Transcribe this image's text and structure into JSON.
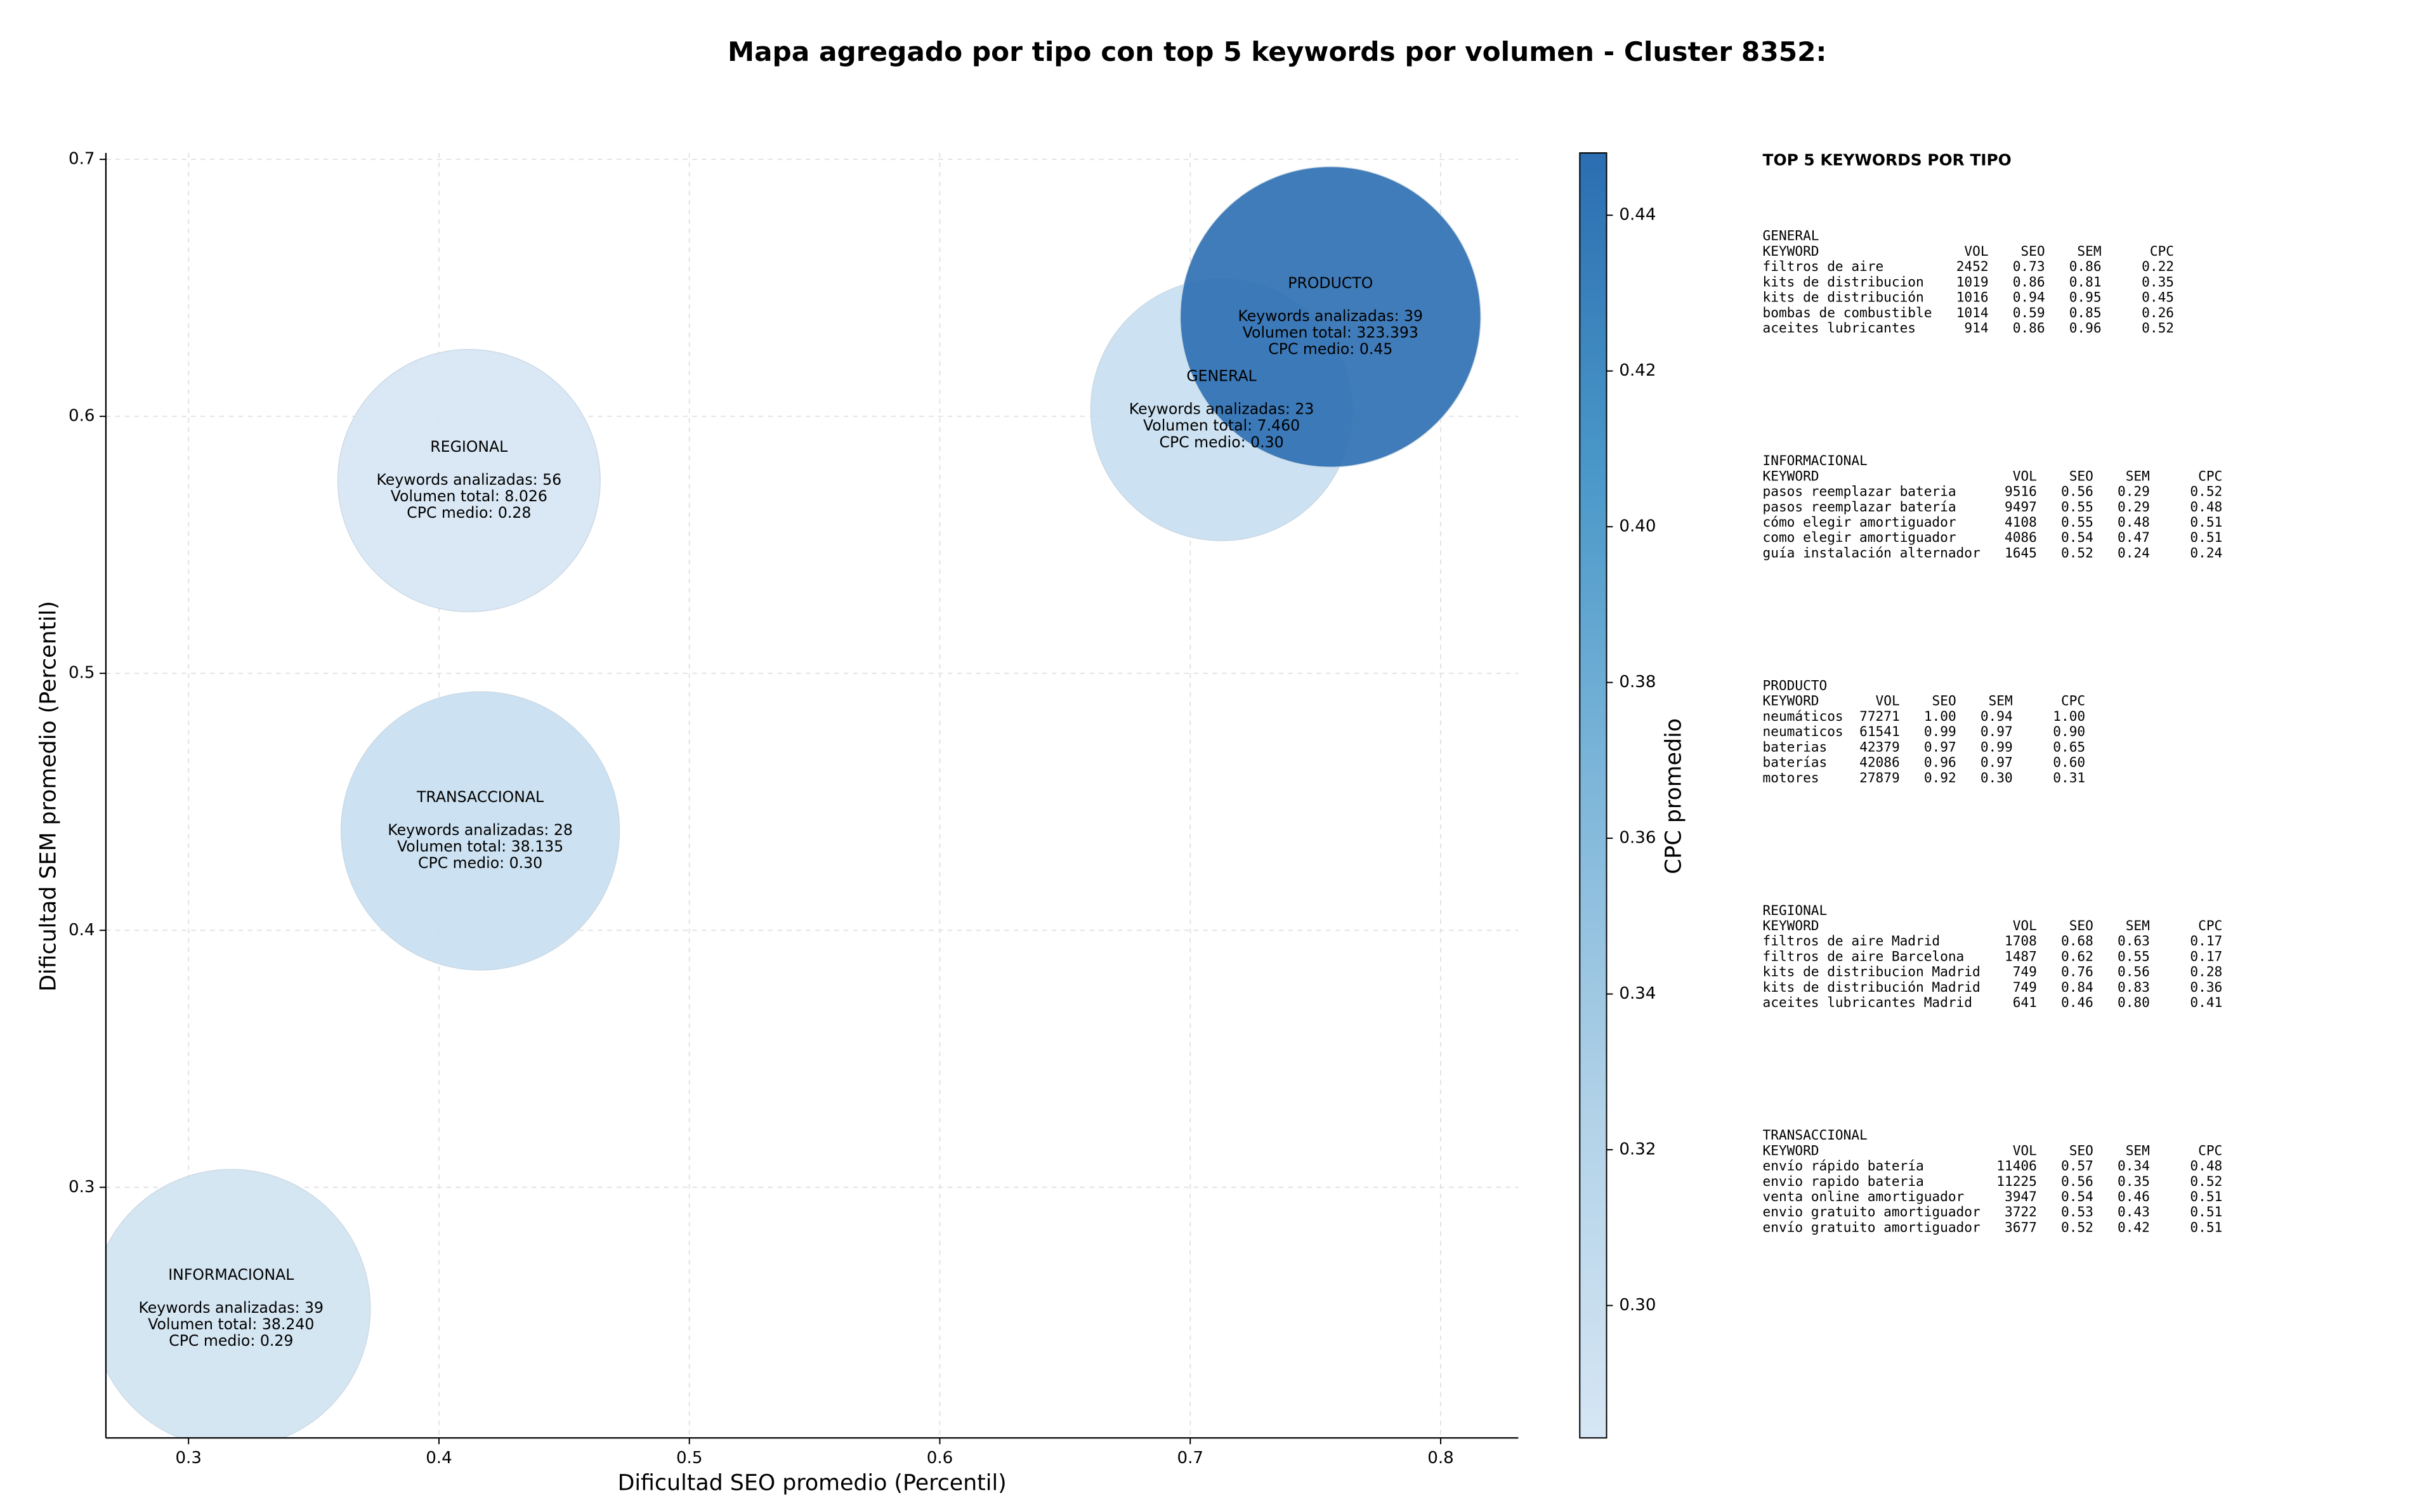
{
  "chart_data": {
    "type": "bubble",
    "title": "Mapa agregado por tipo con top 5 keywords por volumen - Cluster 8352:",
    "xlabel": "Dificultad SEO promedio (Percentil)",
    "ylabel": "Dificultad SEM promedio (Percentil)",
    "xlim": [
      0.267,
      0.831
    ],
    "ylim": [
      0.2025,
      0.7025
    ],
    "xticks": [
      0.3,
      0.4,
      0.5,
      0.6,
      0.7,
      0.8
    ],
    "yticks": [
      0.3,
      0.4,
      0.5,
      0.6,
      0.7
    ],
    "grid": true,
    "colorbar": {
      "label": "CPC promedio",
      "lim": [
        0.283,
        0.448
      ],
      "colormap": [
        "#d6e6f4",
        "#b2d2e8",
        "#7fb7da",
        "#4a98c9",
        "#2b6eb1"
      ],
      "ticks": [
        {
          "value": 0.3,
          "label": "0.30"
        },
        {
          "value": 0.32,
          "label": "0.32"
        },
        {
          "value": 0.34,
          "label": "0.34"
        },
        {
          "value": 0.36,
          "label": "0.36"
        },
        {
          "value": 0.38,
          "label": "0.38"
        },
        {
          "value": 0.4,
          "label": "0.40"
        },
        {
          "value": 0.42,
          "label": "0.42"
        },
        {
          "value": 0.44,
          "label": "0.44"
        }
      ]
    },
    "points": [
      {
        "label": "INFORMACIONAL",
        "x": 0.317,
        "y": 0.2528,
        "size": 38240,
        "color_value": 0.29,
        "annotation": [
          "Keywords analizadas: 39",
          "Volumen total: 38.240",
          "CPC medio: 0.29"
        ]
      },
      {
        "label": "REGIONAL",
        "x": 0.412,
        "y": 0.575,
        "size": 8026,
        "color_value": 0.28,
        "annotation": [
          "Keywords analizadas: 56",
          "Volumen total: 8.026",
          "CPC medio: 0.28"
        ]
      },
      {
        "label": "TRANSACCIONAL",
        "x": 0.4165,
        "y": 0.4387,
        "size": 38135,
        "color_value": 0.3,
        "annotation": [
          "Keywords analizadas: 28",
          "Volumen total: 38.135",
          "CPC medio: 0.30"
        ]
      },
      {
        "label": "GENERAL",
        "x": 0.7125,
        "y": 0.6025,
        "size": 7460,
        "color_value": 0.3,
        "annotation": [
          "Keywords analizadas: 23",
          "Volumen total: 7.460",
          "CPC medio: 0.30"
        ]
      },
      {
        "label": "PRODUCTO",
        "x": 0.756,
        "y": 0.6387,
        "size": 323393,
        "color_value": 0.45,
        "annotation": [
          "Keywords analizadas: 39",
          "Volumen total: 323.393",
          "CPC medio: 0.45"
        ]
      }
    ]
  },
  "side_panel": {
    "title": "TOP 5 KEYWORDS POR TIPO",
    "columns": [
      "KEYWORD",
      "VOL",
      "SEO",
      "SEM",
      "CPC"
    ],
    "groups": [
      {
        "name": "GENERAL",
        "rows": [
          [
            "filtros de aire",
            "2452",
            "0.73",
            "0.86",
            "0.22"
          ],
          [
            "kits de distribucion",
            "1019",
            "0.86",
            "0.81",
            "0.35"
          ],
          [
            "kits de distribución",
            "1016",
            "0.94",
            "0.95",
            "0.45"
          ],
          [
            "bombas de combustible",
            "1014",
            "0.59",
            "0.85",
            "0.26"
          ],
          [
            "aceites lubricantes",
            "914",
            "0.86",
            "0.96",
            "0.52"
          ]
        ]
      },
      {
        "name": "INFORMACIONAL",
        "rows": [
          [
            "pasos reemplazar bateria",
            "9516",
            "0.56",
            "0.29",
            "0.52"
          ],
          [
            "pasos reemplazar batería",
            "9497",
            "0.55",
            "0.29",
            "0.48"
          ],
          [
            "cómo elegir amortiguador",
            "4108",
            "0.55",
            "0.48",
            "0.51"
          ],
          [
            "como elegir amortiguador",
            "4086",
            "0.54",
            "0.47",
            "0.51"
          ],
          [
            "guía instalación alternador",
            "1645",
            "0.52",
            "0.24",
            "0.24"
          ]
        ]
      },
      {
        "name": "PRODUCTO",
        "rows": [
          [
            "neumáticos",
            "77271",
            "1.00",
            "0.94",
            "1.00"
          ],
          [
            "neumaticos",
            "61541",
            "0.99",
            "0.97",
            "0.90"
          ],
          [
            "baterias",
            "42379",
            "0.97",
            "0.99",
            "0.65"
          ],
          [
            "baterías",
            "42086",
            "0.96",
            "0.97",
            "0.60"
          ],
          [
            "motores",
            "27879",
            "0.92",
            "0.30",
            "0.31"
          ]
        ]
      },
      {
        "name": "REGIONAL",
        "rows": [
          [
            "filtros de aire Madrid",
            "1708",
            "0.68",
            "0.63",
            "0.17"
          ],
          [
            "filtros de aire Barcelona",
            "1487",
            "0.62",
            "0.55",
            "0.17"
          ],
          [
            "kits de distribucion Madrid",
            "749",
            "0.76",
            "0.56",
            "0.28"
          ],
          [
            "kits de distribución Madrid",
            "749",
            "0.84",
            "0.83",
            "0.36"
          ],
          [
            "aceites lubricantes Madrid",
            "641",
            "0.46",
            "0.80",
            "0.41"
          ]
        ]
      },
      {
        "name": "TRANSACCIONAL",
        "rows": [
          [
            "envío rápido batería",
            "11406",
            "0.57",
            "0.34",
            "0.48"
          ],
          [
            "envio rapido bateria",
            "11225",
            "0.56",
            "0.35",
            "0.52"
          ],
          [
            "venta online amortiguador",
            "3947",
            "0.54",
            "0.46",
            "0.51"
          ],
          [
            "envio gratuito amortiguador",
            "3722",
            "0.53",
            "0.43",
            "0.51"
          ],
          [
            "envío gratuito amortiguador",
            "3677",
            "0.52",
            "0.42",
            "0.51"
          ]
        ]
      }
    ]
  }
}
